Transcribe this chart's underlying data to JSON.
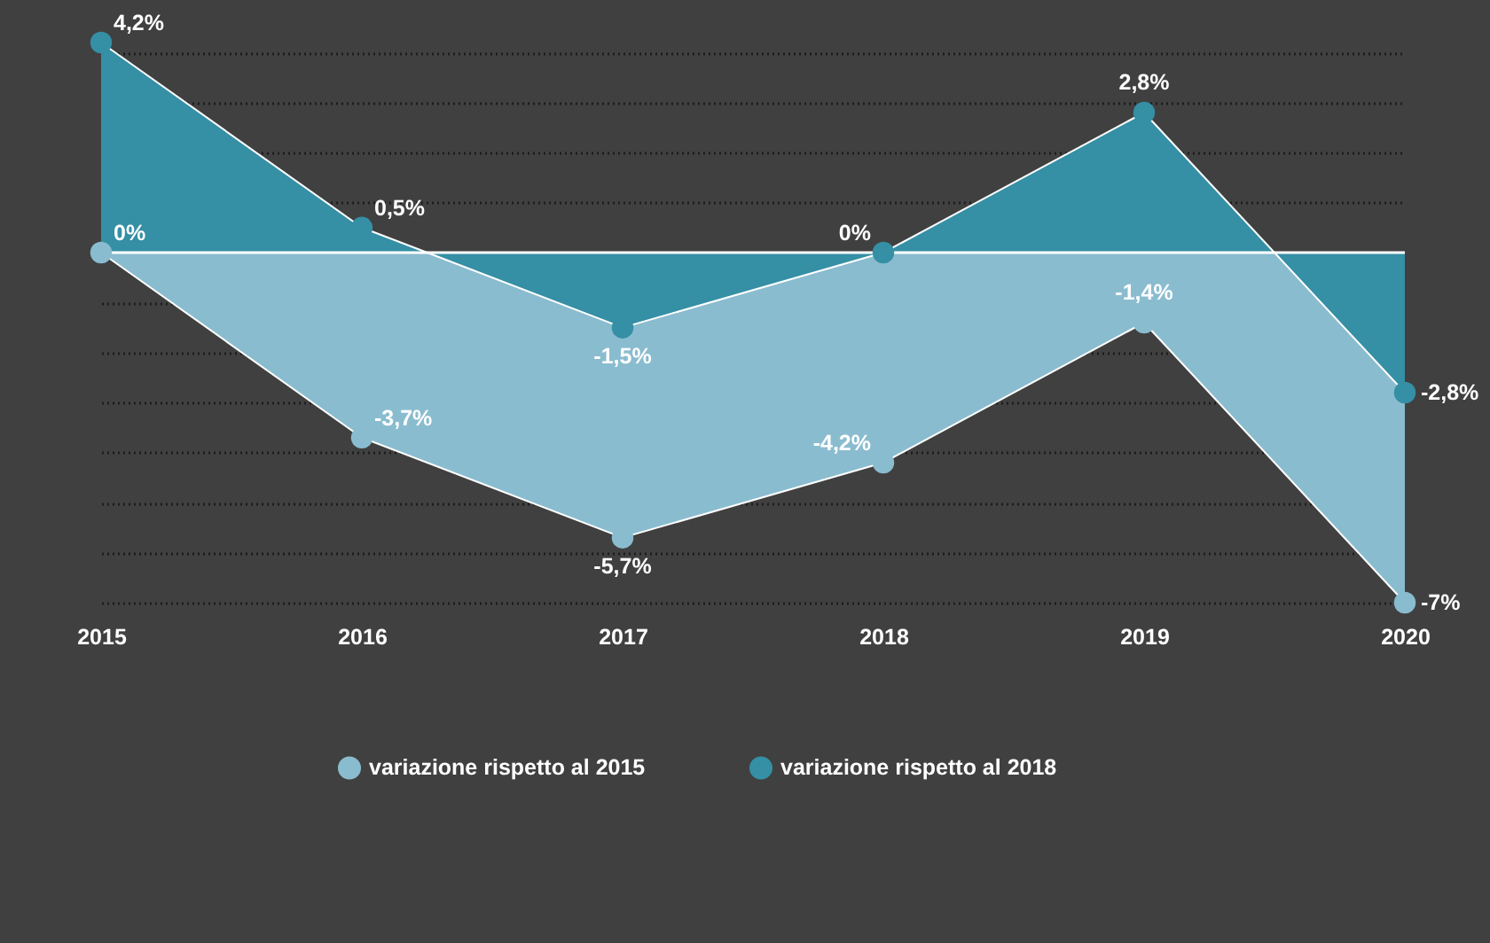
{
  "chart_data": {
    "type": "area",
    "categories": [
      "2015",
      "2016",
      "2017",
      "2018",
      "2019",
      "2020"
    ],
    "series": [
      {
        "name": "variazione rispetto al 2015",
        "color": "#8abccf",
        "values": [
          0,
          -3.7,
          -5.7,
          -4.2,
          -1.4,
          -7
        ],
        "value_labels": [
          "0%",
          "-3,7%",
          "-5,7%",
          "-4,2%",
          "-1,4%",
          "-7%"
        ]
      },
      {
        "name": "variazione rispetto al 2018",
        "color": "#358fa5",
        "values": [
          4.2,
          0.5,
          -1.5,
          0,
          2.8,
          -2.8
        ],
        "value_labels": [
          "4,2%",
          "0,5%",
          "-1,5%",
          "0%",
          "2,8%",
          "-2,8%"
        ]
      }
    ],
    "grid": "y",
    "tick_labels": "x",
    "legend": "bottom",
    "ref_lines": [
      {
        "axis": "y",
        "value": 0,
        "color": "#ffffff"
      }
    ]
  }
}
